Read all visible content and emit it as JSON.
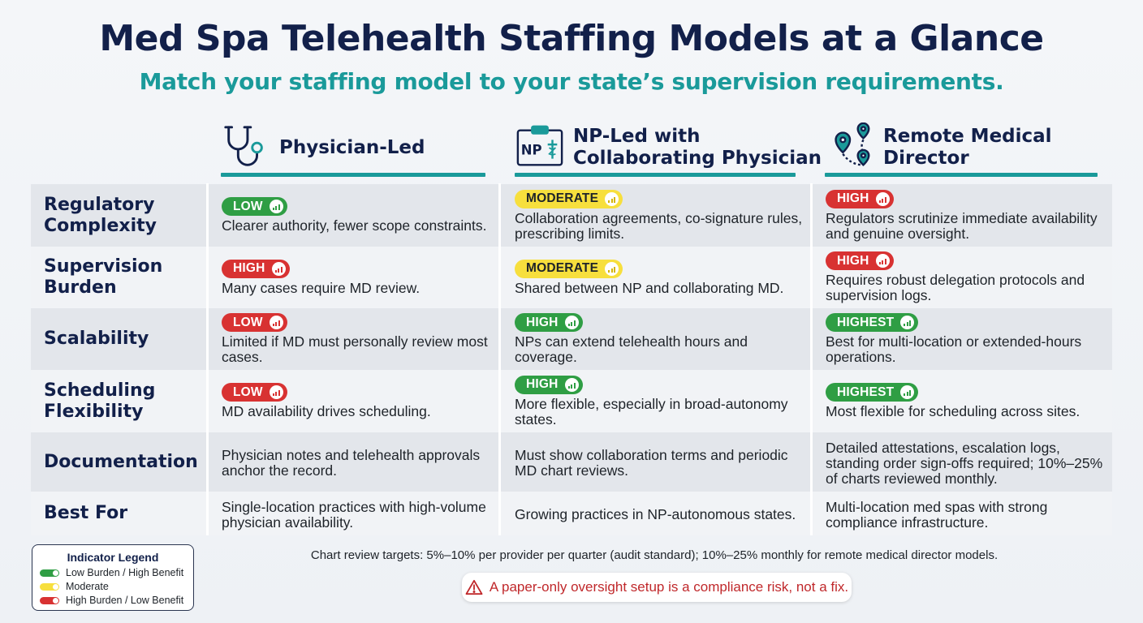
{
  "header": {
    "title": "Med Spa Telehealth Staffing Models at a Glance",
    "subtitle": "Match your staffing model to your state’s supervision requirements."
  },
  "columns": [
    {
      "label": "Physician-Led",
      "icon": "stethoscope-icon"
    },
    {
      "label": "NP-Led with\nCollaborating Physician",
      "icon": "np-badge-icon",
      "icon_text": "NP"
    },
    {
      "label": "Remote Medical\nDirector",
      "icon": "map-pins-icon"
    }
  ],
  "rows": [
    {
      "label": "Regulatory\nComplexity",
      "cells": [
        {
          "badge": "LOW",
          "level": "green",
          "text": "Clearer authority, fewer scope constraints."
        },
        {
          "badge": "MODERATE",
          "level": "yellow",
          "text": "Collaboration agreements, co-signature rules, prescribing limits."
        },
        {
          "badge": "HIGH",
          "level": "red",
          "text": "Regulators scrutinize immediate availability and genuine oversight."
        }
      ]
    },
    {
      "label": "Supervision\nBurden",
      "cells": [
        {
          "badge": "HIGH",
          "level": "red",
          "text": "Many cases require MD review."
        },
        {
          "badge": "MODERATE",
          "level": "yellow",
          "text": "Shared between NP and collaborating MD."
        },
        {
          "badge": "HIGH",
          "level": "red",
          "text": "Requires robust delegation protocols and supervision logs."
        }
      ]
    },
    {
      "label": "Scalability",
      "cells": [
        {
          "badge": "LOW",
          "level": "red",
          "text": "Limited if MD must personally review most cases."
        },
        {
          "badge": "HIGH",
          "level": "green",
          "text": "NPs can extend telehealth hours and coverage."
        },
        {
          "badge": "HIGHEST",
          "level": "green",
          "text": "Best for multi-location or extended-hours operations."
        }
      ]
    },
    {
      "label": "Scheduling\nFlexibility",
      "cells": [
        {
          "badge": "LOW",
          "level": "red",
          "text": "MD availability drives scheduling."
        },
        {
          "badge": "HIGH",
          "level": "green",
          "text": "More flexible, especially in broad-autonomy states."
        },
        {
          "badge": "HIGHEST",
          "level": "green",
          "text": "Most flexible for scheduling across sites."
        }
      ]
    },
    {
      "label": "Documentation",
      "cells": [
        {
          "text": "Physician notes and telehealth approvals anchor the record."
        },
        {
          "text": "Must show collaboration terms and periodic MD chart reviews."
        },
        {
          "text": "Detailed attestations, escalation logs, standing order sign-offs required; 10%–25% of charts reviewed monthly."
        }
      ]
    },
    {
      "label": "Best For",
      "cells": [
        {
          "text": "Single-location practices with high-volume physician availability."
        },
        {
          "text": "Growing practices in NP-autonomous states."
        },
        {
          "text": "Multi-location med spas with strong compliance infrastructure."
        }
      ]
    }
  ],
  "legend": {
    "title": "Indicator Legend",
    "items": [
      {
        "label": "Low Burden / High Benefit",
        "color": "#2f9e44"
      },
      {
        "label": "Moderate",
        "color": "#f7df3d"
      },
      {
        "label": "High Burden / Low Benefit",
        "color": "#d83232"
      }
    ]
  },
  "footnote": "Chart review targets: 5%–10% per provider per quarter (audit standard); 10%–25% monthly for remote medical director models.",
  "warning": {
    "text": "A paper-only oversight setup is a compliance risk, not a fix.",
    "icon": "warning-icon"
  },
  "colors": {
    "navy": "#12204a",
    "teal": "#1a9a9a",
    "green": "#2f9e44",
    "yellow": "#f7df3d",
    "red": "#d83232"
  }
}
